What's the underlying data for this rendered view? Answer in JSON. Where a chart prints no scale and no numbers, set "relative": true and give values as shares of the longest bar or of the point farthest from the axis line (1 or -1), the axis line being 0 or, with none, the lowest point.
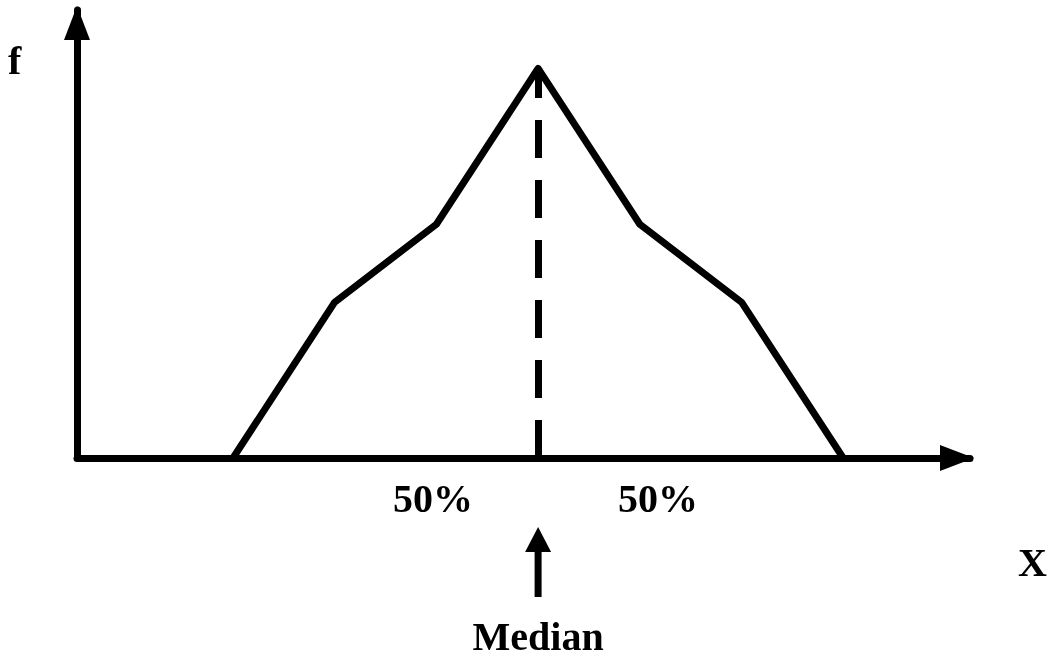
{
  "chart_data": {
    "type": "line",
    "relative": true,
    "xlabel": "X",
    "ylabel": "f",
    "categories": [
      null,
      null,
      null,
      null,
      null,
      null,
      null
    ],
    "series": [
      {
        "color": "#000000",
        "values": [
          0,
          0.4,
          0.6,
          1,
          0.6,
          0.4,
          0
        ]
      }
    ],
    "marker": "none",
    "line_style": "solid",
    "grid": false,
    "annotations": [
      "50%",
      "50%",
      "Median"
    ]
  }
}
